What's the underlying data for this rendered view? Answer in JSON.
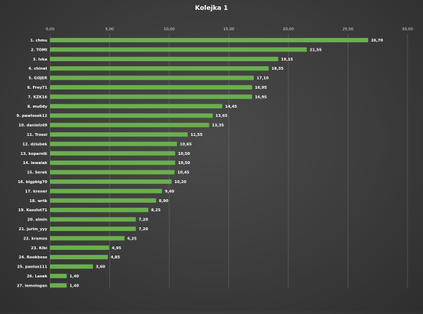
{
  "chart_data": {
    "type": "bar",
    "orientation": "horizontal",
    "title": "Kolejka  1",
    "xlim": [
      0,
      30
    ],
    "x_ticks": [
      "0,00",
      "5,00",
      "10,00",
      "15,00",
      "20,00",
      "25,00",
      "30,00"
    ],
    "x_tick_values": [
      0,
      5,
      10,
      15,
      20,
      25,
      30
    ],
    "x_axis_position": "top",
    "grid": true,
    "bar_color": "#6ab04c",
    "categories": [
      "1. chmu",
      "2. TOMI",
      "3. Ivka",
      "4. chinat",
      "5. GOJER",
      "6. Frey71",
      "7. KZK16",
      "8. mu0dy",
      "9. pawlosek12",
      "10. danielz49",
      "11. Trzesi",
      "12. dziubek",
      "13. koparnik",
      "14. lewalak",
      "15. Serek",
      "16. bigpbig70",
      "17. krener",
      "18. wrtk",
      "19. Kaszlot71",
      "20. almin",
      "21. jurim_yyy",
      "22. kramos",
      "23. Kibi",
      "24. Rookboss",
      "25. paolus111",
      "26. Lasek",
      "27. lemologan"
    ],
    "values": [
      26.7,
      21.55,
      19.15,
      18.35,
      17.1,
      16.95,
      16.95,
      14.45,
      13.65,
      13.35,
      11.55,
      10.65,
      10.5,
      10.5,
      10.45,
      10.2,
      9.4,
      8.9,
      8.25,
      7.2,
      7.2,
      6.25,
      4.95,
      4.85,
      3.6,
      1.4,
      1.4
    ],
    "value_labels": [
      "26,70",
      "21,55",
      "19,15",
      "18,35",
      "17,10",
      "16,95",
      "16,95",
      "14,45",
      "13,65",
      "13,35",
      "11,55",
      "10,65",
      "10,50",
      "10,50",
      "10,45",
      "10,20",
      "9,40",
      "8,90",
      "8,25",
      "7,20",
      "7,20",
      "6,25",
      "4,95",
      "4,85",
      "3,60",
      "1,40",
      "1,40"
    ]
  }
}
